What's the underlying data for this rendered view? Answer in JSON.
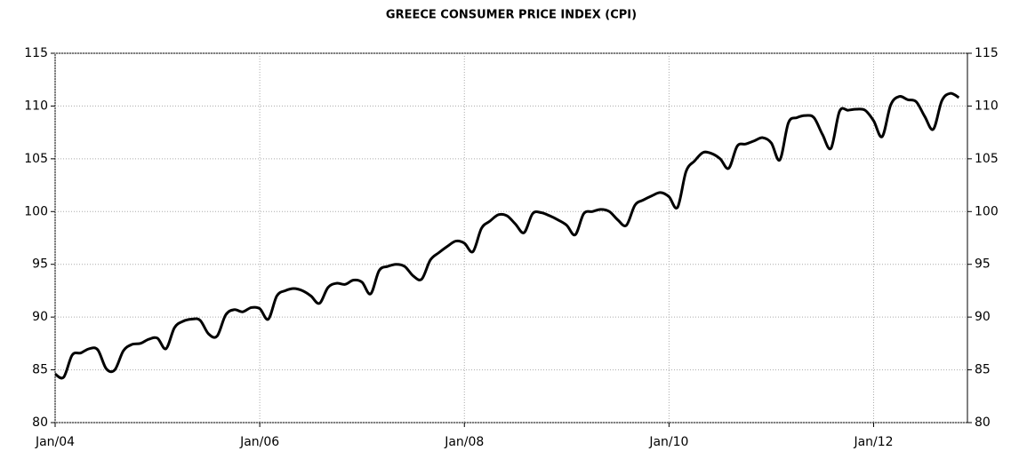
{
  "chart_data": {
    "type": "line",
    "title": "GREECE CONSUMER PRICE INDEX (CPI)",
    "x": [
      "2004-01",
      "2004-02",
      "2004-03",
      "2004-04",
      "2004-05",
      "2004-06",
      "2004-07",
      "2004-08",
      "2004-09",
      "2004-10",
      "2004-11",
      "2004-12",
      "2005-01",
      "2005-02",
      "2005-03",
      "2005-04",
      "2005-05",
      "2005-06",
      "2005-07",
      "2005-08",
      "2005-09",
      "2005-10",
      "2005-11",
      "2005-12",
      "2006-01",
      "2006-02",
      "2006-03",
      "2006-04",
      "2006-05",
      "2006-06",
      "2006-07",
      "2006-08",
      "2006-09",
      "2006-10",
      "2006-11",
      "2006-12",
      "2007-01",
      "2007-02",
      "2007-03",
      "2007-04",
      "2007-05",
      "2007-06",
      "2007-07",
      "2007-08",
      "2007-09",
      "2007-10",
      "2007-11",
      "2007-12",
      "2008-01",
      "2008-02",
      "2008-03",
      "2008-04",
      "2008-05",
      "2008-06",
      "2008-07",
      "2008-08",
      "2008-09",
      "2008-10",
      "2008-11",
      "2008-12",
      "2009-01",
      "2009-02",
      "2009-03",
      "2009-04",
      "2009-05",
      "2009-06",
      "2009-07",
      "2009-08",
      "2009-09",
      "2009-10",
      "2009-11",
      "2009-12",
      "2010-01",
      "2010-02",
      "2010-03",
      "2010-04",
      "2010-05",
      "2010-06",
      "2010-07",
      "2010-08",
      "2010-09",
      "2010-10",
      "2010-11",
      "2010-12",
      "2011-01",
      "2011-02",
      "2011-03",
      "2011-04",
      "2011-05",
      "2011-06",
      "2011-07",
      "2011-08",
      "2011-09",
      "2011-10",
      "2011-11",
      "2011-12",
      "2012-01",
      "2012-02",
      "2012-03",
      "2012-04",
      "2012-05",
      "2012-06",
      "2012-07",
      "2012-08",
      "2012-09",
      "2012-10",
      "2012-11"
    ],
    "series": [
      {
        "name": "CPI",
        "color": "#000000",
        "values": [
          84.6,
          84.3,
          86.4,
          86.6,
          87.0,
          86.9,
          85.1,
          85.0,
          86.8,
          87.4,
          87.5,
          87.9,
          88.0,
          87.0,
          89.0,
          89.6,
          89.8,
          89.7,
          88.4,
          88.2,
          90.2,
          90.7,
          90.5,
          90.9,
          90.8,
          89.8,
          92.0,
          92.5,
          92.7,
          92.5,
          92.0,
          91.3,
          92.8,
          93.2,
          93.1,
          93.5,
          93.3,
          92.2,
          94.4,
          94.8,
          95.0,
          94.8,
          93.9,
          93.6,
          95.4,
          96.1,
          96.7,
          97.2,
          97.0,
          96.2,
          98.4,
          99.1,
          99.7,
          99.6,
          98.8,
          98.0,
          99.8,
          99.9,
          99.6,
          99.2,
          98.7,
          97.8,
          99.8,
          100.0,
          100.2,
          100.0,
          99.2,
          98.7,
          100.6,
          101.1,
          101.5,
          101.8,
          101.4,
          100.4,
          103.8,
          104.8,
          105.6,
          105.5,
          105.0,
          104.1,
          106.2,
          106.4,
          106.7,
          107.0,
          106.5,
          104.9,
          108.4,
          108.9,
          109.1,
          108.9,
          107.3,
          106.0,
          109.5,
          109.6,
          109.7,
          109.6,
          108.6,
          107.1,
          110.1,
          110.9,
          110.6,
          110.4,
          109.0,
          107.8,
          110.5,
          111.2,
          110.8
        ]
      }
    ],
    "xlim": [
      "2004-01",
      "2012-12"
    ],
    "xticks": [
      {
        "value": "2004-01",
        "label": "Jan/04"
      },
      {
        "value": "2006-01",
        "label": "Jan/06"
      },
      {
        "value": "2008-01",
        "label": "Jan/08"
      },
      {
        "value": "2010-01",
        "label": "Jan/10"
      },
      {
        "value": "2012-01",
        "label": "Jan/12"
      }
    ],
    "ylim": [
      80,
      115
    ],
    "yticks": [
      80,
      85,
      90,
      95,
      100,
      105,
      110,
      115
    ],
    "grid": true
  }
}
